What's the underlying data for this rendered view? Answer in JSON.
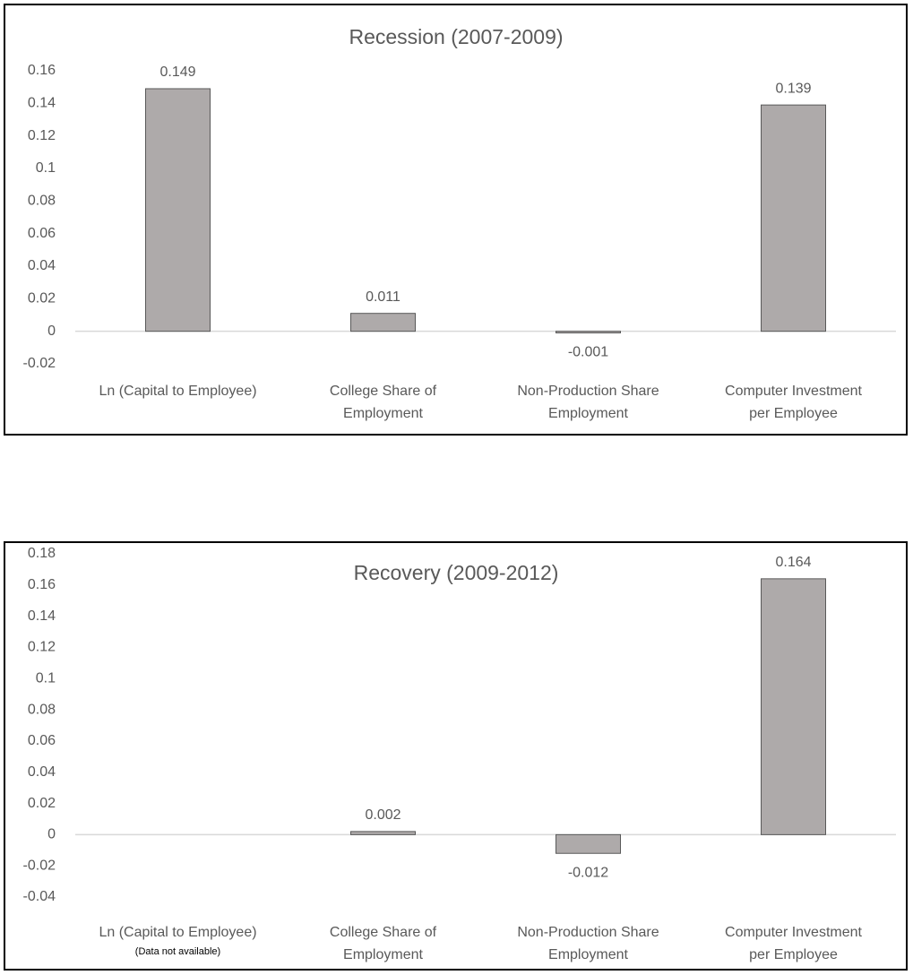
{
  "chart_data": [
    {
      "type": "bar",
      "title": "Recession (2007-2009)",
      "categories": [
        [
          "Ln (Capital to Employee)"
        ],
        [
          "College Share of",
          "Employment"
        ],
        [
          "Non-Production Share",
          "Employment"
        ],
        [
          "Computer Investment",
          "per Employee"
        ]
      ],
      "values": [
        0.149,
        0.011,
        -0.001,
        0.139
      ],
      "color": "#aeaaaa",
      "ylim": [
        -0.02,
        0.16
      ],
      "yticks": [
        -0.02,
        0,
        0.02,
        0.04,
        0.06,
        0.08,
        0.1,
        0.12,
        0.14,
        0.16
      ],
      "grid": false
    },
    {
      "type": "bar",
      "title": "Recovery (2009-2012)",
      "categories": [
        [
          "Ln (Capital to Employee)"
        ],
        [
          "College Share of",
          "Employment"
        ],
        [
          "Non-Production Share",
          "Employment"
        ],
        [
          "Computer Investment",
          "per Employee"
        ]
      ],
      "values": [
        null,
        0.002,
        -0.012,
        0.164
      ],
      "color": "#aeaaaa",
      "annotation": "(Data not available)",
      "ylim": [
        -0.04,
        0.18
      ],
      "yticks": [
        -0.04,
        -0.02,
        0,
        0.02,
        0.04,
        0.06,
        0.08,
        0.1,
        0.12,
        0.14,
        0.16,
        0.18
      ],
      "grid": false
    }
  ]
}
